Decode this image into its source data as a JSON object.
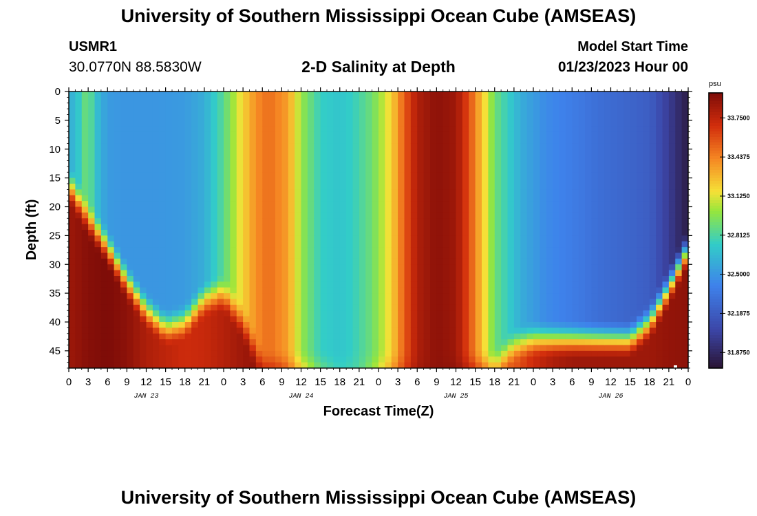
{
  "header": {
    "title": "University of Southern Mississippi Ocean Cube (AMSEAS)",
    "station": "USMR1",
    "coordinates": "30.0770N  88.5830W",
    "subtitle": "2-D Salinity at Depth",
    "start_label": "Model Start Time",
    "start_value": "01/23/2023 Hour 00"
  },
  "footer": {
    "title": "University of Southern Mississippi Ocean Cube (AMSEAS)"
  },
  "chart_data": {
    "type": "heatmap",
    "title": "2-D Salinity at Depth",
    "xlabel": "Forecast Time(Z)",
    "ylabel": "Depth (ft)",
    "x_unit": "hours since 01/23/2023 00Z",
    "xlim": [
      0,
      96
    ],
    "ylim": [
      0,
      48
    ],
    "x_ticks": [
      0,
      3,
      6,
      9,
      12,
      15,
      18,
      21,
      24,
      27,
      30,
      33,
      36,
      39,
      42,
      45,
      48,
      51,
      54,
      57,
      60,
      63,
      66,
      69,
      72,
      75,
      78,
      81,
      84,
      87,
      90,
      93,
      96
    ],
    "x_tick_labels": [
      "0",
      "3",
      "6",
      "9",
      "12",
      "15",
      "18",
      "21",
      "0",
      "3",
      "6",
      "9",
      "12",
      "15",
      "18",
      "21",
      "0",
      "3",
      "6",
      "9",
      "12",
      "15",
      "18",
      "21",
      "0",
      "3",
      "6",
      "9",
      "12",
      "15",
      "18",
      "21",
      "0"
    ],
    "date_labels": [
      {
        "hour": 12,
        "label": "JAN 23"
      },
      {
        "hour": 36,
        "label": "JAN 24"
      },
      {
        "hour": 60,
        "label": "JAN 25"
      },
      {
        "hour": 84,
        "label": "JAN 26"
      }
    ],
    "y_ticks": [
      0,
      5,
      10,
      15,
      20,
      25,
      30,
      35,
      40,
      45
    ],
    "colorbar": {
      "unit": "psu",
      "range": [
        31.75,
        33.95
      ],
      "ticks": [
        31.875,
        32.1875,
        32.5,
        32.8125,
        33.125,
        33.4375,
        33.75
      ],
      "tick_labels": [
        "31.8750",
        "32.1875",
        "32.5000",
        "32.8125",
        "33.1250",
        "33.4375",
        "33.7500"
      ]
    },
    "surface_profile": {
      "hours": [
        0,
        1,
        2,
        3,
        4,
        6,
        8,
        10,
        14,
        18,
        21,
        24,
        27,
        29,
        31,
        34,
        36,
        39,
        42,
        44,
        47,
        50,
        52,
        54,
        57,
        60,
        62,
        64,
        66,
        70,
        74,
        78,
        82,
        86,
        90,
        93,
        96
      ],
      "values": [
        32.62,
        32.64,
        32.8,
        32.95,
        32.7,
        32.52,
        32.5,
        32.5,
        32.5,
        32.52,
        32.6,
        32.85,
        33.2,
        33.4,
        33.5,
        33.35,
        33.0,
        32.75,
        32.7,
        32.75,
        32.9,
        33.2,
        33.55,
        33.8,
        33.9,
        33.85,
        33.6,
        33.25,
        32.9,
        32.6,
        32.45,
        32.38,
        32.3,
        32.25,
        32.2,
        32.0,
        31.8
      ]
    },
    "bottom_profile": {
      "hours": [
        0,
        3,
        6,
        9,
        12,
        15,
        18,
        21,
        24,
        27,
        30,
        33,
        36,
        39,
        42,
        45,
        48,
        51,
        54,
        57,
        60,
        63,
        66,
        69,
        72,
        75,
        78,
        81,
        84,
        87,
        90,
        93,
        96
      ],
      "values": [
        33.85,
        33.92,
        33.95,
        33.9,
        33.8,
        33.75,
        33.7,
        33.72,
        33.78,
        33.85,
        33.9,
        33.8,
        33.4,
        33.0,
        32.8,
        32.85,
        33.2,
        33.6,
        33.85,
        33.9,
        33.92,
        33.85,
        33.6,
        33.55,
        33.7,
        33.8,
        33.85,
        33.85,
        33.85,
        33.85,
        33.85,
        33.88,
        33.9
      ]
    },
    "surface_layer_depth_ft": {
      "hours": [
        0,
        3,
        6,
        9,
        12,
        15,
        18,
        21,
        24,
        27,
        30,
        33,
        36,
        39,
        42,
        45,
        48,
        51,
        54,
        57,
        60,
        63,
        66,
        69,
        72,
        75,
        78,
        81,
        84,
        87,
        90,
        93,
        96
      ],
      "values": [
        16,
        22,
        27,
        33,
        38,
        41,
        40,
        36,
        35,
        40,
        48,
        48,
        48,
        48,
        48,
        48,
        48,
        48,
        48,
        48,
        48,
        48,
        48,
        44,
        43,
        43,
        43,
        43,
        43,
        43,
        40,
        34,
        27
      ]
    }
  }
}
